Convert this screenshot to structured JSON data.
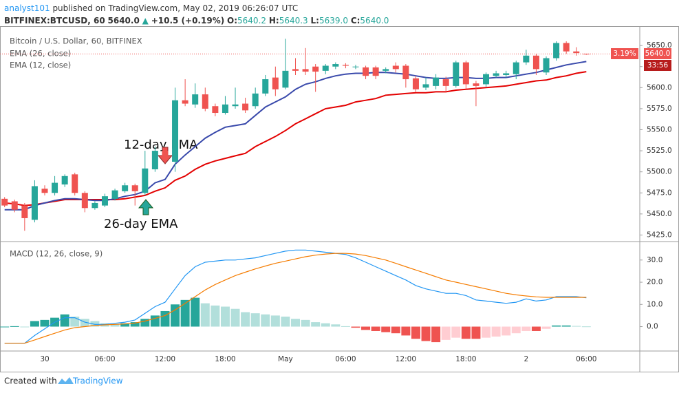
{
  "header": {
    "author": "analyst101",
    "published": "published on TradingView.com, May 02, 2019 06:26:07 UTC",
    "symbol": "BITFINEX:BTCUSD, 60",
    "last": "5640.0",
    "change": "+10.5 (+0.19%)",
    "ohlc": [
      {
        "label": "O:",
        "value": "5640.2"
      },
      {
        "label": "H:",
        "value": "5640.3"
      },
      {
        "label": "L:",
        "value": "5639.0"
      },
      {
        "label": "C:",
        "value": "5640.0"
      }
    ]
  },
  "footer": {
    "created": "Created with",
    "brand": "TradingView"
  },
  "chart_data": [
    {
      "type": "candlestick",
      "title": "Bitcoin / U.S. Dollar, 60, BITFINEX",
      "categories": [
        null,
        null,
        null,
        null,
        "30",
        null,
        null,
        null,
        null,
        null,
        "06:00",
        null,
        null,
        null,
        null,
        null,
        "12:00",
        null,
        null,
        null,
        null,
        null,
        "18:00",
        null,
        null,
        null,
        null,
        null,
        "May",
        null,
        null,
        null,
        null,
        null,
        "06:00",
        null,
        null,
        null,
        null,
        null,
        "12:00",
        null,
        null,
        null,
        null,
        null,
        "18:00",
        null,
        null,
        null,
        null,
        null,
        "2",
        null,
        null,
        null,
        null,
        null,
        "06:00"
      ],
      "open": [
        5468,
        5465,
        5460,
        5443,
        5480,
        5475,
        5485,
        5497,
        5475,
        5457,
        5460,
        5468,
        5477,
        5484,
        5475,
        5503,
        5525,
        5512,
        5585,
        5580,
        5592,
        5578,
        5570,
        5578,
        5581,
        5578,
        5593,
        5612,
        5600,
        5622,
        5622,
        5625,
        5620,
        5625,
        5627,
        5625,
        5624,
        5624,
        5620,
        5626,
        5626,
        5611,
        5600,
        5602,
        5610,
        5602,
        5630,
        5605,
        5604,
        5614,
        5615,
        5616,
        5630,
        5638,
        5618,
        5635,
        5653,
        5643,
        5640.2
      ],
      "high": [
        5470,
        5467,
        5463,
        5490,
        5484,
        5495,
        5497,
        5499,
        5477,
        5465,
        5474,
        5480,
        5487,
        5486,
        5525,
        5530,
        5528,
        5600,
        5610,
        5605,
        5600,
        5581,
        5590,
        5600,
        5588,
        5600,
        5615,
        5625,
        5658,
        5635,
        5647,
        5628,
        5628,
        5630,
        5629,
        5627,
        5626,
        5626,
        5624,
        5630,
        5628,
        5614,
        5612,
        5616,
        5613,
        5632,
        5632,
        5608,
        5618,
        5620,
        5620,
        5632,
        5645,
        5640,
        5637,
        5655,
        5655,
        5648,
        5640.3
      ],
      "low": [
        5458,
        5452,
        5430,
        5440,
        5472,
        5472,
        5482,
        5472,
        5452,
        5455,
        5458,
        5466,
        5475,
        5460,
        5472,
        5500,
        5510,
        5500,
        5578,
        5576,
        5572,
        5566,
        5568,
        5575,
        5570,
        5575,
        5590,
        5590,
        5598,
        5615,
        5615,
        5595,
        5616,
        5622,
        5623,
        5622,
        5610,
        5610,
        5617,
        5618,
        5600,
        5595,
        5597,
        5598,
        5595,
        5600,
        5598,
        5578,
        5601,
        5612,
        5612,
        5610,
        5627,
        5615,
        5615,
        5632,
        5640,
        5638,
        5639
      ],
      "close": [
        5460,
        5455,
        5445,
        5483,
        5475,
        5487,
        5495,
        5475,
        5457,
        5463,
        5471,
        5478,
        5484,
        5477,
        5504,
        5525,
        5514,
        5585,
        5581,
        5592,
        5575,
        5570,
        5580,
        5580,
        5573,
        5593,
        5610,
        5598,
        5620,
        5620,
        5619,
        5619,
        5626,
        5628,
        5626,
        5625,
        5614,
        5614,
        5622,
        5622,
        5610,
        5598,
        5604,
        5612,
        5602,
        5630,
        5604,
        5602,
        5616,
        5617,
        5617,
        5630,
        5638,
        5622,
        5635,
        5653,
        5643,
        5641,
        5640
      ],
      "up_color": "#26a69a",
      "down_color": "#ef5350",
      "series": [
        {
          "name": "EMA (26, close)",
          "color": "#e30000",
          "values": [
            5463,
            5462,
            5460,
            5461,
            5463,
            5465,
            5467,
            5467,
            5467,
            5467,
            5467,
            5467,
            5468,
            5470,
            5472,
            5477,
            5481,
            5490,
            5495,
            5503,
            5509,
            5513,
            5516,
            5519,
            5522,
            5530,
            5536,
            5542,
            5549,
            5557,
            5563,
            5569,
            5575,
            5577,
            5579,
            5583,
            5585,
            5587,
            5591,
            5592,
            5593,
            5594,
            5594,
            5595,
            5595,
            5597,
            5598,
            5599,
            5600,
            5601,
            5602,
            5604,
            5606,
            5608,
            5609,
            5612,
            5614,
            5617,
            5619
          ]
        },
        {
          "name": "EMA (12, close)",
          "color": "#3949ab",
          "values": [
            5455,
            5455,
            5455,
            5460,
            5463,
            5466,
            5468,
            5468,
            5467,
            5466,
            5466,
            5468,
            5471,
            5473,
            5477,
            5487,
            5491,
            5509,
            5520,
            5530,
            5540,
            5547,
            5553,
            5555,
            5557,
            5567,
            5577,
            5583,
            5589,
            5598,
            5604,
            5607,
            5611,
            5614,
            5616,
            5617,
            5617,
            5618,
            5618,
            5617,
            5616,
            5614,
            5612,
            5611,
            5611,
            5612,
            5612,
            5611,
            5611,
            5612,
            5612,
            5614,
            5616,
            5618,
            5621,
            5624,
            5627,
            5629,
            5631
          ]
        }
      ],
      "ylim": [
        5418,
        5673
      ],
      "yticks": [
        {
          "value": 5425,
          "label": "5425.0"
        },
        {
          "value": 5450,
          "label": "5450.0"
        },
        {
          "value": 5475,
          "label": "5475.0"
        },
        {
          "value": 5500,
          "label": "5500.0"
        },
        {
          "value": 5525,
          "label": "5525.0"
        },
        {
          "value": 5550,
          "label": "5550.0"
        },
        {
          "value": 5575,
          "label": "5575.0"
        },
        {
          "value": 5600,
          "label": "5600.0"
        },
        {
          "value": 5625,
          "label": "5625.0"
        },
        {
          "value": 5650,
          "label": "5650.0"
        }
      ],
      "grid": false,
      "annotations": [
        "12-day EMA",
        "26-day EMA"
      ],
      "tags": {
        "percent": "3.19%",
        "price": "5640.0",
        "countdown": "33:56"
      }
    },
    {
      "type": "macd",
      "title": "MACD (12, 26, close, 9)",
      "series": [
        {
          "color": "#2196f3",
          "values": [
            -7.5,
            -7.5,
            -7.5,
            -4,
            -1,
            2,
            4,
            4,
            2,
            1,
            1,
            1.5,
            2,
            3,
            6,
            9,
            11,
            17,
            23,
            27,
            29,
            29.5,
            30,
            30,
            30.5,
            31,
            32,
            33,
            34,
            34.5,
            34.5,
            34,
            33.5,
            33,
            32.5,
            31,
            29,
            27,
            25,
            23,
            21,
            18.5,
            17,
            16,
            15,
            15,
            14,
            12,
            11.5,
            11,
            10.5,
            11,
            12.5,
            11.5,
            12,
            13.5,
            13.5,
            13.5,
            13
          ]
        },
        {
          "color": "#f57c00",
          "values": [
            -7.5,
            -7.5,
            -7.5,
            -6,
            -4.5,
            -3,
            -1.5,
            -0.5,
            0,
            0.5,
            0.8,
            1,
            1.2,
            1.6,
            2.5,
            3.7,
            5,
            7.5,
            10.5,
            13.5,
            16.5,
            19,
            21,
            23,
            24.5,
            26,
            27.3,
            28.5,
            29.5,
            30.5,
            31.5,
            32.2,
            32.7,
            33,
            33,
            32.7,
            32,
            31,
            30,
            28.5,
            27,
            25.5,
            24,
            22.5,
            21,
            20,
            19,
            18,
            17,
            16,
            15,
            14.3,
            13.8,
            13.4,
            13.2,
            13.2,
            13.2,
            13.2,
            13.2
          ]
        }
      ],
      "histogram": {
        "values": [
          0,
          0.2,
          0,
          2.5,
          3,
          4,
          5.5,
          4.5,
          3.5,
          2.5,
          1.5,
          1,
          1.5,
          2,
          3.5,
          5,
          7,
          10,
          12,
          13,
          10.5,
          9.5,
          9,
          8,
          6.5,
          6,
          5.5,
          5,
          4.5,
          3.5,
          3,
          2,
          1.5,
          1,
          0.2,
          -0.5,
          -1.5,
          -2,
          -2.5,
          -3,
          -4,
          -5.5,
          -6.5,
          -7,
          -6,
          -5,
          -5.5,
          -5.5,
          -5,
          -4.5,
          -4,
          -3,
          -2,
          -2,
          -1,
          0.5,
          0.5,
          0.3,
          0.1
        ],
        "colors": [
          "#26a69a",
          "#b2dfdb",
          "#ef5350",
          "#ffcdd2"
        ]
      },
      "ylim": [
        -11,
        38
      ],
      "yticks": [
        {
          "value": 0,
          "label": "0.0"
        },
        {
          "value": 10,
          "label": "10.0"
        },
        {
          "value": 20,
          "label": "20.0"
        },
        {
          "value": 30,
          "label": "30.0"
        }
      ]
    }
  ]
}
